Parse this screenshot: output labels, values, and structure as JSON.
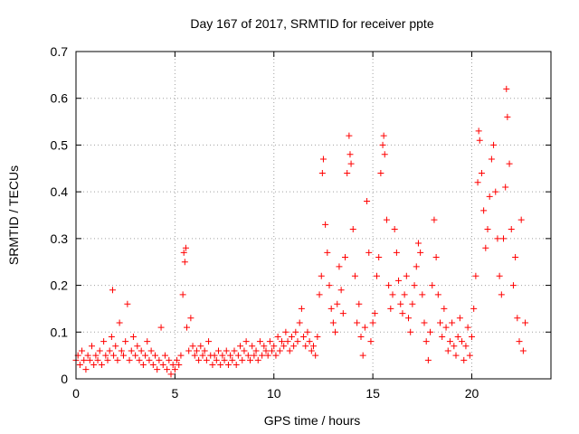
{
  "chart_data": {
    "type": "scatter",
    "title": "Day 167 of 2017, SRMTID for receiver ppte",
    "xlabel": "GPS time / hours",
    "ylabel": "SRMTID / TECUs",
    "xlim": [
      0,
      24
    ],
    "ylim": [
      0,
      0.7
    ],
    "xticks": [
      0,
      5,
      10,
      15,
      20
    ],
    "yticks": [
      0,
      0.1,
      0.2,
      0.3,
      0.4,
      0.5,
      0.6,
      0.7
    ],
    "xtick_labels": [
      "0",
      "5",
      "10",
      "15",
      "20"
    ],
    "ytick_labels": [
      "0",
      "0.1",
      "0.2",
      "0.3",
      "0.4",
      "0.5",
      "0.6",
      "0.7"
    ],
    "grid": true,
    "marker": "+",
    "color": "#ff0000",
    "series": [
      {
        "name": "SRMTID",
        "points": [
          [
            0.0,
            0.04
          ],
          [
            0.1,
            0.05
          ],
          [
            0.2,
            0.03
          ],
          [
            0.3,
            0.06
          ],
          [
            0.4,
            0.04
          ],
          [
            0.5,
            0.02
          ],
          [
            0.6,
            0.05
          ],
          [
            0.7,
            0.04
          ],
          [
            0.8,
            0.07
          ],
          [
            0.9,
            0.03
          ],
          [
            1.0,
            0.05
          ],
          [
            1.1,
            0.04
          ],
          [
            1.2,
            0.06
          ],
          [
            1.3,
            0.03
          ],
          [
            1.4,
            0.08
          ],
          [
            1.5,
            0.05
          ],
          [
            1.6,
            0.04
          ],
          [
            1.7,
            0.06
          ],
          [
            1.8,
            0.09
          ],
          [
            1.85,
            0.19
          ],
          [
            1.9,
            0.05
          ],
          [
            2.0,
            0.07
          ],
          [
            2.1,
            0.04
          ],
          [
            2.2,
            0.12
          ],
          [
            2.3,
            0.06
          ],
          [
            2.4,
            0.05
          ],
          [
            2.5,
            0.08
          ],
          [
            2.6,
            0.16
          ],
          [
            2.7,
            0.04
          ],
          [
            2.8,
            0.06
          ],
          [
            2.9,
            0.09
          ],
          [
            3.0,
            0.05
          ],
          [
            3.1,
            0.07
          ],
          [
            3.2,
            0.04
          ],
          [
            3.3,
            0.06
          ],
          [
            3.4,
            0.03
          ],
          [
            3.5,
            0.05
          ],
          [
            3.6,
            0.08
          ],
          [
            3.7,
            0.04
          ],
          [
            3.8,
            0.06
          ],
          [
            3.9,
            0.03
          ],
          [
            4.0,
            0.05
          ],
          [
            4.1,
            0.02
          ],
          [
            4.2,
            0.04
          ],
          [
            4.3,
            0.11
          ],
          [
            4.4,
            0.03
          ],
          [
            4.5,
            0.05
          ],
          [
            4.6,
            0.02
          ],
          [
            4.7,
            0.04
          ],
          [
            4.8,
            0.01
          ],
          [
            4.9,
            0.03
          ],
          [
            5.0,
            0.02
          ],
          [
            5.1,
            0.04
          ],
          [
            5.2,
            0.03
          ],
          [
            5.3,
            0.05
          ],
          [
            5.4,
            0.18
          ],
          [
            5.45,
            0.27
          ],
          [
            5.5,
            0.25
          ],
          [
            5.55,
            0.28
          ],
          [
            5.6,
            0.11
          ],
          [
            5.7,
            0.06
          ],
          [
            5.8,
            0.13
          ],
          [
            5.9,
            0.07
          ],
          [
            6.0,
            0.05
          ],
          [
            6.1,
            0.06
          ],
          [
            6.2,
            0.04
          ],
          [
            6.3,
            0.07
          ],
          [
            6.4,
            0.05
          ],
          [
            6.5,
            0.06
          ],
          [
            6.6,
            0.04
          ],
          [
            6.7,
            0.08
          ],
          [
            6.8,
            0.05
          ],
          [
            6.9,
            0.03
          ],
          [
            7.0,
            0.05
          ],
          [
            7.1,
            0.04
          ],
          [
            7.2,
            0.06
          ],
          [
            7.3,
            0.03
          ],
          [
            7.4,
            0.05
          ],
          [
            7.5,
            0.04
          ],
          [
            7.6,
            0.06
          ],
          [
            7.7,
            0.03
          ],
          [
            7.8,
            0.05
          ],
          [
            7.9,
            0.04
          ],
          [
            8.0,
            0.06
          ],
          [
            8.1,
            0.03
          ],
          [
            8.2,
            0.05
          ],
          [
            8.3,
            0.07
          ],
          [
            8.4,
            0.04
          ],
          [
            8.5,
            0.06
          ],
          [
            8.6,
            0.08
          ],
          [
            8.7,
            0.05
          ],
          [
            8.8,
            0.04
          ],
          [
            8.9,
            0.07
          ],
          [
            9.0,
            0.05
          ],
          [
            9.1,
            0.06
          ],
          [
            9.2,
            0.04
          ],
          [
            9.3,
            0.08
          ],
          [
            9.4,
            0.05
          ],
          [
            9.5,
            0.07
          ],
          [
            9.6,
            0.06
          ],
          [
            9.7,
            0.05
          ],
          [
            9.8,
            0.08
          ],
          [
            9.9,
            0.06
          ],
          [
            10.0,
            0.07
          ],
          [
            10.1,
            0.05
          ],
          [
            10.2,
            0.09
          ],
          [
            10.3,
            0.06
          ],
          [
            10.4,
            0.08
          ],
          [
            10.5,
            0.07
          ],
          [
            10.6,
            0.1
          ],
          [
            10.7,
            0.08
          ],
          [
            10.8,
            0.06
          ],
          [
            10.9,
            0.09
          ],
          [
            11.0,
            0.07
          ],
          [
            11.1,
            0.1
          ],
          [
            11.2,
            0.08
          ],
          [
            11.3,
            0.12
          ],
          [
            11.4,
            0.15
          ],
          [
            11.5,
            0.09
          ],
          [
            11.6,
            0.07
          ],
          [
            11.7,
            0.1
          ],
          [
            11.8,
            0.08
          ],
          [
            11.9,
            0.06
          ],
          [
            12.0,
            0.07
          ],
          [
            12.1,
            0.05
          ],
          [
            12.2,
            0.09
          ],
          [
            12.3,
            0.18
          ],
          [
            12.4,
            0.22
          ],
          [
            12.45,
            0.44
          ],
          [
            12.5,
            0.47
          ],
          [
            12.6,
            0.33
          ],
          [
            12.7,
            0.27
          ],
          [
            12.8,
            0.2
          ],
          [
            12.9,
            0.15
          ],
          [
            13.0,
            0.12
          ],
          [
            13.1,
            0.1
          ],
          [
            13.2,
            0.16
          ],
          [
            13.3,
            0.24
          ],
          [
            13.4,
            0.19
          ],
          [
            13.5,
            0.14
          ],
          [
            13.6,
            0.26
          ],
          [
            13.7,
            0.44
          ],
          [
            13.8,
            0.52
          ],
          [
            13.85,
            0.48
          ],
          [
            13.9,
            0.46
          ],
          [
            14.0,
            0.32
          ],
          [
            14.1,
            0.22
          ],
          [
            14.2,
            0.12
          ],
          [
            14.3,
            0.16
          ],
          [
            14.4,
            0.09
          ],
          [
            14.5,
            0.05
          ],
          [
            14.6,
            0.11
          ],
          [
            14.7,
            0.38
          ],
          [
            14.8,
            0.27
          ],
          [
            14.9,
            0.08
          ],
          [
            15.0,
            0.12
          ],
          [
            15.1,
            0.14
          ],
          [
            15.2,
            0.22
          ],
          [
            15.3,
            0.26
          ],
          [
            15.4,
            0.44
          ],
          [
            15.5,
            0.5
          ],
          [
            15.55,
            0.52
          ],
          [
            15.6,
            0.48
          ],
          [
            15.7,
            0.34
          ],
          [
            15.8,
            0.2
          ],
          [
            15.9,
            0.15
          ],
          [
            16.0,
            0.18
          ],
          [
            16.1,
            0.32
          ],
          [
            16.2,
            0.27
          ],
          [
            16.3,
            0.21
          ],
          [
            16.4,
            0.16
          ],
          [
            16.5,
            0.14
          ],
          [
            16.6,
            0.18
          ],
          [
            16.7,
            0.22
          ],
          [
            16.8,
            0.13
          ],
          [
            16.9,
            0.1
          ],
          [
            17.0,
            0.16
          ],
          [
            17.1,
            0.2
          ],
          [
            17.2,
            0.24
          ],
          [
            17.3,
            0.29
          ],
          [
            17.4,
            0.27
          ],
          [
            17.5,
            0.18
          ],
          [
            17.6,
            0.12
          ],
          [
            17.7,
            0.08
          ],
          [
            17.8,
            0.04
          ],
          [
            17.9,
            0.1
          ],
          [
            18.0,
            0.2
          ],
          [
            18.1,
            0.34
          ],
          [
            18.2,
            0.26
          ],
          [
            18.3,
            0.18
          ],
          [
            18.4,
            0.12
          ],
          [
            18.5,
            0.09
          ],
          [
            18.6,
            0.15
          ],
          [
            18.7,
            0.11
          ],
          [
            18.8,
            0.06
          ],
          [
            18.9,
            0.08
          ],
          [
            19.0,
            0.12
          ],
          [
            19.1,
            0.07
          ],
          [
            19.2,
            0.05
          ],
          [
            19.3,
            0.09
          ],
          [
            19.4,
            0.13
          ],
          [
            19.5,
            0.08
          ],
          [
            19.6,
            0.04
          ],
          [
            19.7,
            0.07
          ],
          [
            19.8,
            0.11
          ],
          [
            19.9,
            0.05
          ],
          [
            20.0,
            0.09
          ],
          [
            20.1,
            0.15
          ],
          [
            20.2,
            0.22
          ],
          [
            20.3,
            0.42
          ],
          [
            20.35,
            0.53
          ],
          [
            20.4,
            0.51
          ],
          [
            20.5,
            0.44
          ],
          [
            20.6,
            0.36
          ],
          [
            20.7,
            0.28
          ],
          [
            20.8,
            0.32
          ],
          [
            20.9,
            0.39
          ],
          [
            21.0,
            0.47
          ],
          [
            21.1,
            0.5
          ],
          [
            21.2,
            0.4
          ],
          [
            21.3,
            0.3
          ],
          [
            21.4,
            0.22
          ],
          [
            21.5,
            0.18
          ],
          [
            21.6,
            0.3
          ],
          [
            21.7,
            0.41
          ],
          [
            21.75,
            0.62
          ],
          [
            21.8,
            0.56
          ],
          [
            21.9,
            0.46
          ],
          [
            22.0,
            0.32
          ],
          [
            22.1,
            0.2
          ],
          [
            22.2,
            0.26
          ],
          [
            22.3,
            0.13
          ],
          [
            22.4,
            0.08
          ],
          [
            22.5,
            0.34
          ],
          [
            22.6,
            0.06
          ],
          [
            22.7,
            0.12
          ]
        ]
      }
    ]
  }
}
